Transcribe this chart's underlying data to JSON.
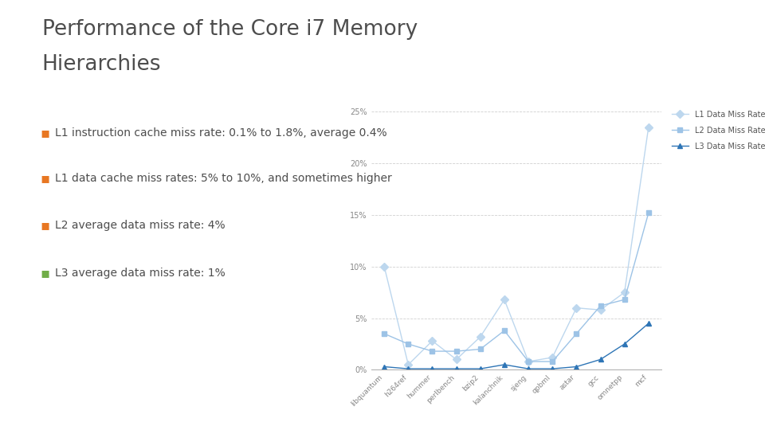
{
  "title_line1": "Performance of the Core i7 Memory",
  "title_line2": "Hierarchies",
  "title_color": "#4d4d4d",
  "bullets": [
    "L1 instruction cache miss rate: 0.1% to 1.8%, average 0.4%",
    "L1 data cache miss rates: 5% to 10%, and sometimes higher",
    "L2 average data miss rate: 4%",
    "L3 average data miss rate: 1%"
  ],
  "bullet_colors": [
    "#e87722",
    "#e87722",
    "#e87722",
    "#70ad47"
  ],
  "sidebar_blue": "#5b9bd5",
  "sidebar_orange": "#ed7d31",
  "sidebar_green": "#70ad47",
  "background_color": "#ffffff",
  "categories": [
    "libquantum",
    "h264ref",
    "hummer",
    "perlbench",
    "bzip2",
    "kalanchnik",
    "sjeng",
    "qpbml",
    "astar",
    "gcc",
    "omnetpp",
    "mcf"
  ],
  "l1_data": [
    10.0,
    0.5,
    2.8,
    1.0,
    3.2,
    6.8,
    0.8,
    1.2,
    6.0,
    5.8,
    7.5,
    23.5
  ],
  "l2_data": [
    3.5,
    2.5,
    1.8,
    1.8,
    2.0,
    3.8,
    0.8,
    0.8,
    3.5,
    6.2,
    6.8,
    15.2
  ],
  "l3_data": [
    0.3,
    0.1,
    0.1,
    0.1,
    0.1,
    0.5,
    0.1,
    0.1,
    0.3,
    1.0,
    2.5,
    4.5
  ],
  "l1_color": "#bdd7ee",
  "l2_color": "#9dc3e6",
  "l3_color": "#2e75b6",
  "ylim": [
    0,
    25
  ],
  "yticks": [
    0,
    5,
    10,
    15,
    20,
    25
  ],
  "ytick_labels": [
    "0%",
    "5%",
    "10%",
    "15%",
    "20%",
    "25%"
  ],
  "legend_labels": [
    "L1 Data Miss Rate",
    "L2 Data Miss Rate",
    "L3 Data Miss Rate"
  ]
}
